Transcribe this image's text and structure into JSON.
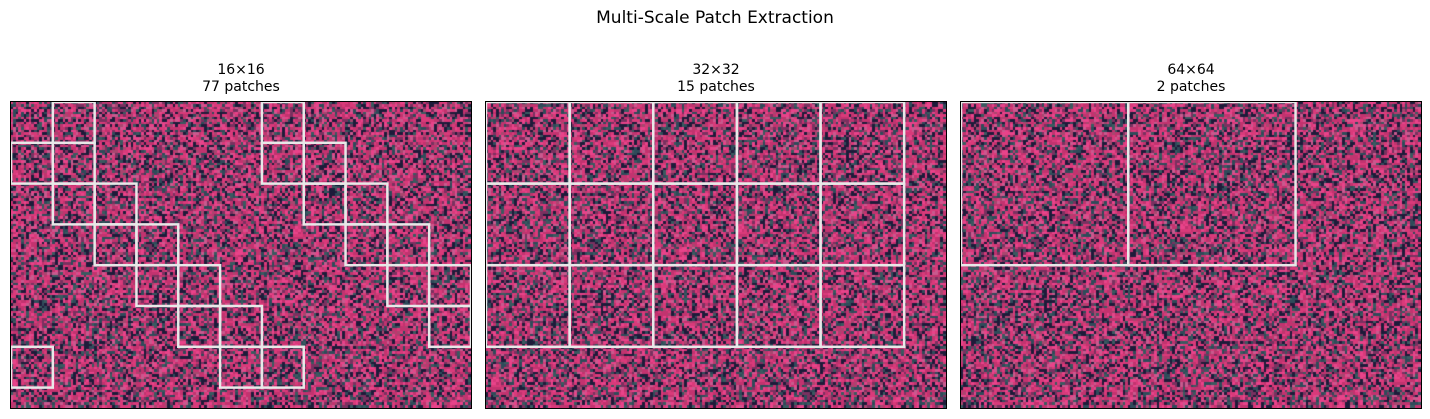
{
  "figure": {
    "suptitle": "Multi-Scale Patch Extraction"
  },
  "chart_data": [
    {
      "type": "heatmap",
      "title": "16×16",
      "subtitle": "77 patches",
      "patch_size": 16,
      "image_size": [
        176,
        120
      ],
      "highlighted_patches": [
        [
          0,
          1
        ],
        [
          1,
          0
        ],
        [
          1,
          1
        ],
        [
          2,
          1
        ],
        [
          2,
          2
        ],
        [
          3,
          2
        ],
        [
          3,
          3
        ],
        [
          4,
          3
        ],
        [
          4,
          4
        ],
        [
          5,
          4
        ],
        [
          5,
          5
        ],
        [
          6,
          5
        ],
        [
          6,
          6
        ],
        [
          0,
          6
        ],
        [
          1,
          6
        ],
        [
          1,
          7
        ],
        [
          2,
          7
        ],
        [
          2,
          8
        ],
        [
          3,
          8
        ],
        [
          3,
          9
        ],
        [
          4,
          9
        ],
        [
          4,
          10
        ],
        [
          5,
          10
        ],
        [
          6,
          0
        ]
      ],
      "grid_color": "#e8e8e8"
    },
    {
      "type": "heatmap",
      "title": "32×32",
      "subtitle": "15 patches",
      "patch_size": 32,
      "image_size": [
        176,
        120
      ],
      "highlighted_patches": [
        [
          0,
          0
        ],
        [
          0,
          1
        ],
        [
          0,
          2
        ],
        [
          0,
          3
        ],
        [
          0,
          4
        ],
        [
          1,
          0
        ],
        [
          1,
          1
        ],
        [
          1,
          2
        ],
        [
          1,
          3
        ],
        [
          1,
          4
        ],
        [
          2,
          0
        ],
        [
          2,
          1
        ],
        [
          2,
          2
        ],
        [
          2,
          3
        ],
        [
          2,
          4
        ]
      ],
      "grid_color": "#e8e8e8"
    },
    {
      "type": "heatmap",
      "title": "64×64",
      "subtitle": "2 patches",
      "patch_size": 64,
      "image_size": [
        176,
        120
      ],
      "highlighted_patches": [
        [
          0,
          0
        ],
        [
          0,
          1
        ]
      ],
      "grid_color": "#e8e8e8"
    }
  ],
  "palette": [
    "#1e1b3a",
    "#2f4b5a",
    "#3a5a60",
    "#7a3160",
    "#c2336f",
    "#d93a7a",
    "#e8438a",
    "#c85a8e",
    "#a8476f"
  ]
}
